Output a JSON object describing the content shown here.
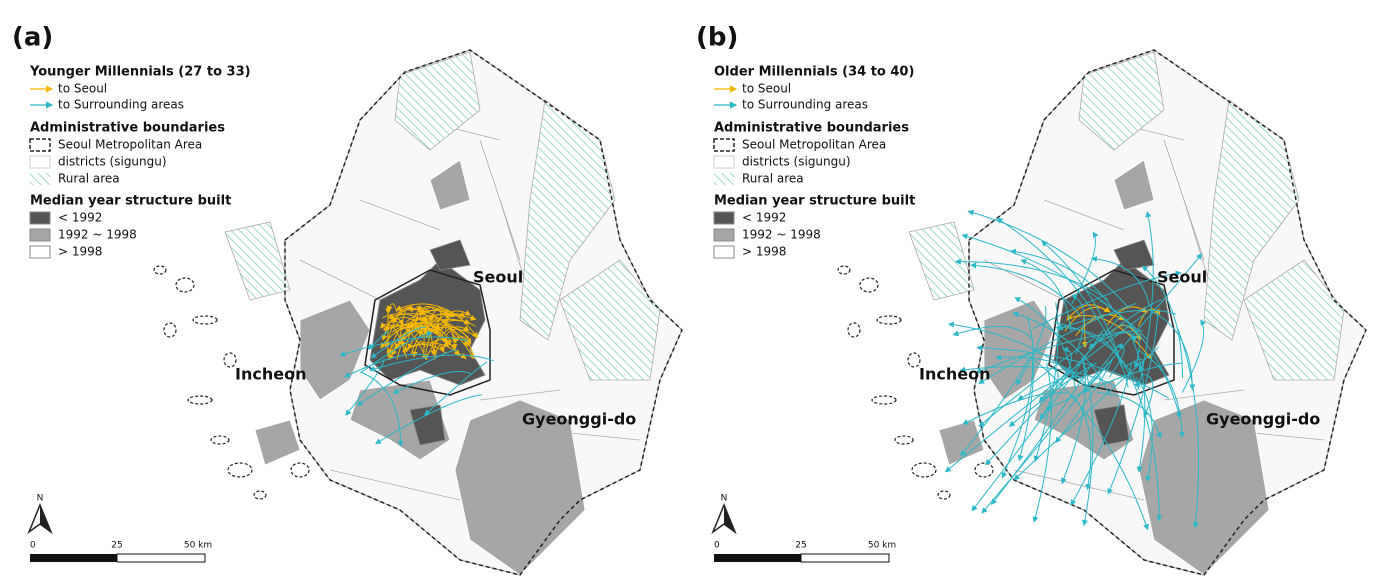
{
  "panels": [
    {
      "label": "(a)",
      "legend": {
        "title": "Younger Millennials (27 to 33)",
        "flows": [
          "to Seoul",
          "to Surrounding areas"
        ],
        "boundaries_title": "Administrative boundaries",
        "boundaries": [
          "Seoul Metropolitan Area",
          "districts (sigungu)",
          "Rural area"
        ],
        "built_title": "Median year structure built",
        "built": [
          "< 1992",
          "1992 ~ 1998",
          "> 1998"
        ]
      },
      "places": [
        "Seoul",
        "Incheon",
        "Gyeonggi-do"
      ],
      "north": "N",
      "scale": [
        "0",
        "25",
        "50 km"
      ]
    },
    {
      "label": "(b)",
      "legend": {
        "title": "Older Millennials (34 to 40)",
        "flows": [
          "to Seoul",
          "to Surrounding areas"
        ],
        "boundaries_title": "Administrative boundaries",
        "boundaries": [
          "Seoul Metropolitan Area",
          "districts (sigungu)",
          "Rural area"
        ],
        "built_title": "Median year structure built",
        "built": [
          "< 1992",
          "1992 ~ 1998",
          "> 1998"
        ]
      },
      "places": [
        "Seoul",
        "Incheon",
        "Gyeonggi-do"
      ],
      "north": "N",
      "scale": [
        "0",
        "25",
        "50 km"
      ]
    }
  ]
}
